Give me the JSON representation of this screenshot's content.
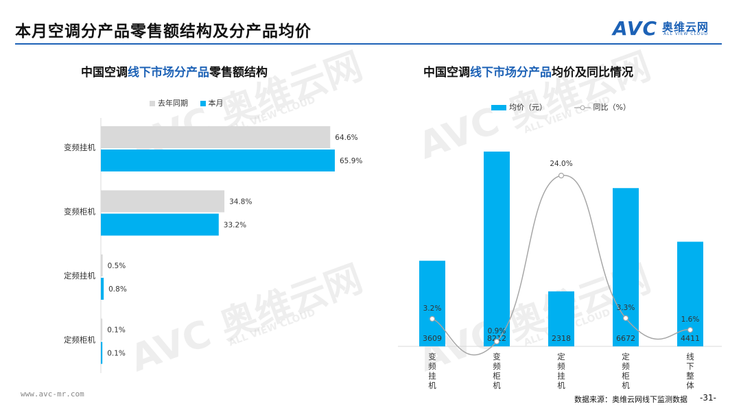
{
  "page": {
    "title": "本月空调分产品零售额结构及分产品均价",
    "logo_main": "AVC",
    "logo_cn": "奥维云网",
    "logo_en": "ALL VIEW CLOUD",
    "footer_url": "www.avc-mr.com",
    "source": "数据来源：奥维云网线下监测数据",
    "page_number": "-31-",
    "watermark_main": "AVC 奥维云网",
    "watermark_sub": "ALL VIEW CLOUD"
  },
  "left_title": {
    "pre": "中国空调",
    "hl": "线下市场分产品",
    "post": "零售额结构"
  },
  "right_title": {
    "pre": "中国空调",
    "hl": "线下市场分产品",
    "post": "均价及同比情况"
  },
  "chart_data": [
    {
      "type": "bar",
      "orientation": "horizontal",
      "categories": [
        "变频挂机",
        "变频柜机",
        "定频挂机",
        "定频柜机"
      ],
      "series": [
        {
          "name": "去年同期",
          "values": [
            64.6,
            34.8,
            0.5,
            0.1
          ],
          "labels": [
            "64.6%",
            "34.8%",
            "0.5%",
            "0.1%"
          ],
          "color": "#d9d9d9"
        },
        {
          "name": "本月",
          "values": [
            65.9,
            33.2,
            0.8,
            0.1
          ],
          "labels": [
            "65.9%",
            "33.2%",
            "0.8%",
            "0.1%"
          ],
          "color": "#00b0f0"
        }
      ],
      "xlim": [
        0,
        70
      ]
    },
    {
      "type": "bar+line",
      "categories": [
        "变频挂机",
        "变频柜机",
        "定频挂机",
        "定频柜机",
        "线下整体"
      ],
      "bar_series": {
        "name": "均价（元）",
        "values": [
          3609,
          8212,
          2318,
          6672,
          4411
        ],
        "labels": [
          "3609",
          "8212",
          "2318",
          "6672",
          "4411"
        ],
        "color": "#00b0f0"
      },
      "line_series": {
        "name": "同比（%）",
        "values": [
          3.2,
          0.9,
          24.0,
          3.3,
          1.6
        ],
        "labels": [
          "3.2%",
          "0.9%",
          "24.0%",
          "3.3%",
          "1.6%"
        ],
        "color": "#a6a6a6"
      }
    }
  ]
}
